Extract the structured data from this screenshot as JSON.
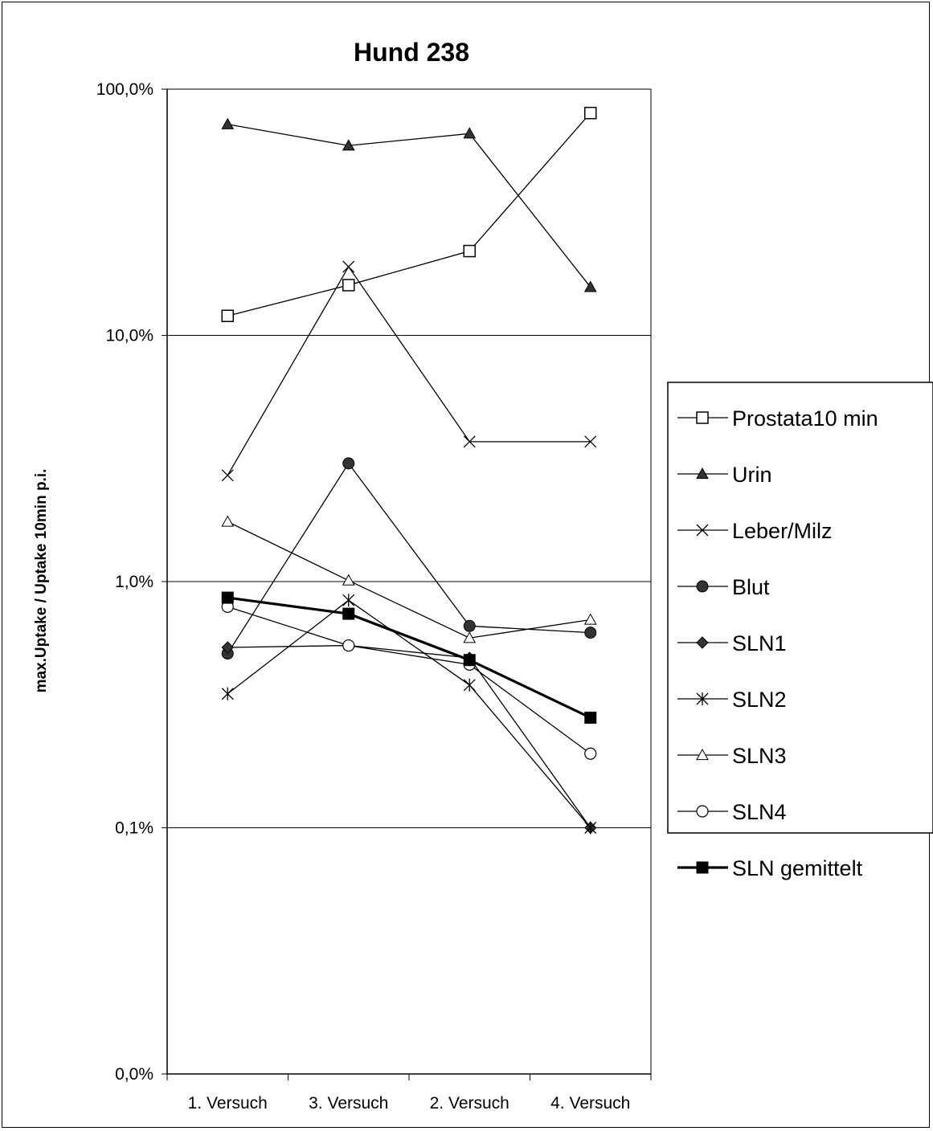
{
  "chart_data": {
    "type": "line",
    "title": "Hund 238",
    "xlabel": "",
    "ylabel": "max.Uptake / Uptake 10min p.i.",
    "categories": [
      "1. Versuch",
      "3. Versuch",
      "2. Versuch",
      "4. Versuch"
    ],
    "y_scale": "log",
    "ylim": [
      0.0001,
      1.0
    ],
    "y_ticks": [
      1.0,
      0.1,
      0.01,
      0.001,
      0.0001
    ],
    "y_tick_labels": [
      "100,0%",
      "10,0%",
      "1,0%",
      "0,1%",
      "0,0%"
    ],
    "grid": "horizontal major lines",
    "legend_position": "right",
    "series": [
      {
        "name": "Prostata10 min",
        "marker": "square-open",
        "line_width": 1.3,
        "values": [
          0.12,
          0.16,
          0.22,
          0.8
        ]
      },
      {
        "name": "Urin",
        "marker": "triangle-filled",
        "line_width": 1.3,
        "values": [
          0.72,
          0.59,
          0.66,
          0.157
        ]
      },
      {
        "name": "Leber/Milz",
        "marker": "x",
        "line_width": 1.3,
        "values": [
          0.027,
          0.19,
          0.037,
          0.037
        ]
      },
      {
        "name": "Blut",
        "marker": "circle-filled",
        "line_width": 1.3,
        "values": [
          0.0051,
          0.0302,
          0.0066,
          0.0062
        ]
      },
      {
        "name": "SLN1",
        "marker": "diamond-filled",
        "line_width": 1.3,
        "values": [
          0.0054,
          0.0055,
          0.0049,
          0.001
        ]
      },
      {
        "name": "SLN2",
        "marker": "star",
        "line_width": 1.3,
        "values": [
          0.0035,
          0.0084,
          0.0038,
          0.001
        ]
      },
      {
        "name": "SLN3",
        "marker": "triangle-open",
        "line_width": 1.3,
        "values": [
          0.0175,
          0.0101,
          0.0059,
          0.007
        ]
      },
      {
        "name": "SLN4",
        "marker": "circle-open",
        "line_width": 1.3,
        "values": [
          0.0079,
          0.0055,
          0.0046,
          0.002
        ]
      },
      {
        "name": "SLN gemittelt",
        "marker": "square-filled",
        "line_width": 3.2,
        "values": [
          0.0086,
          0.0074,
          0.0048,
          0.0028
        ]
      }
    ]
  }
}
